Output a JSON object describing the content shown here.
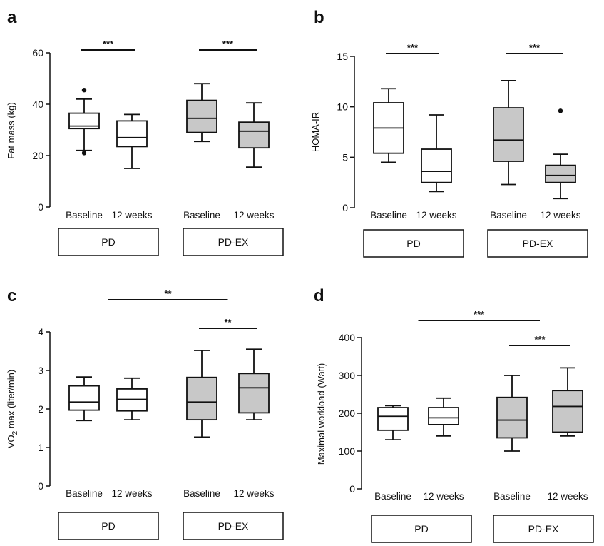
{
  "chart_data": [
    {
      "type": "boxplot",
      "panel_letter": "a",
      "ylabel": "Fat mass (kg)",
      "ylim": [
        0,
        60
      ],
      "yticks": [
        "0",
        "20",
        "40",
        "60"
      ],
      "categories": [
        "Baseline",
        "12 weeks",
        "Baseline",
        "12 weeks"
      ],
      "groups": [
        {
          "label": "PD",
          "fill": "#ffffff"
        },
        {
          "label": "PD-EX",
          "fill": "#c8c8c8"
        }
      ],
      "boxes": [
        {
          "min": 22,
          "q1": 30.5,
          "median": 31.5,
          "q3": 36.5,
          "max": 42,
          "outliers": [
            21,
            45.5
          ]
        },
        {
          "min": 15,
          "q1": 23.5,
          "median": 27,
          "q3": 33.5,
          "max": 36,
          "outliers": []
        },
        {
          "min": 25.5,
          "q1": 29,
          "median": 34.5,
          "q3": 41.5,
          "max": 48,
          "outliers": []
        },
        {
          "min": 15.5,
          "q1": 23,
          "median": 29.5,
          "q3": 33,
          "max": 40.5,
          "outliers": []
        }
      ],
      "significance": [
        {
          "from": 0,
          "to": 1,
          "label": "***"
        },
        {
          "from": 2,
          "to": 3,
          "label": "***"
        }
      ]
    },
    {
      "type": "boxplot",
      "panel_letter": "b",
      "ylabel": "HOMA-IR",
      "ylim": [
        0,
        15
      ],
      "yticks": [
        "0",
        "5",
        "10",
        "15"
      ],
      "categories": [
        "Baseline",
        "12 weeks",
        "Baseline",
        "12 weeks"
      ],
      "groups": [
        {
          "label": "PD",
          "fill": "#ffffff"
        },
        {
          "label": "PD-EX",
          "fill": "#c8c8c8"
        }
      ],
      "boxes": [
        {
          "min": 4.5,
          "q1": 5.4,
          "median": 7.9,
          "q3": 10.4,
          "max": 11.8,
          "outliers": []
        },
        {
          "min": 1.6,
          "q1": 2.5,
          "median": 3.6,
          "q3": 5.8,
          "max": 9.2,
          "outliers": []
        },
        {
          "min": 2.3,
          "q1": 4.6,
          "median": 6.7,
          "q3": 9.9,
          "max": 12.6,
          "outliers": []
        },
        {
          "min": 0.9,
          "q1": 2.5,
          "median": 3.2,
          "q3": 4.2,
          "max": 5.3,
          "outliers": [
            9.6
          ]
        }
      ],
      "significance": [
        {
          "from": 0,
          "to": 1,
          "label": "***"
        },
        {
          "from": 2,
          "to": 3,
          "label": "***"
        }
      ]
    },
    {
      "type": "boxplot",
      "panel_letter": "c",
      "ylabel": "VO2 max (liter/min)",
      "ylabel_main": "VO",
      "ylabel_sub": "2",
      "ylabel_rest": " max (liter/min)",
      "ylim": [
        0,
        4
      ],
      "yticks": [
        "0",
        "1",
        "2",
        "3",
        "4"
      ],
      "categories": [
        "Baseline",
        "12 weeks",
        "Baseline",
        "12 weeks"
      ],
      "groups": [
        {
          "label": "PD",
          "fill": "#ffffff"
        },
        {
          "label": "PD-EX",
          "fill": "#c8c8c8"
        }
      ],
      "boxes": [
        {
          "min": 1.7,
          "q1": 1.97,
          "median": 2.18,
          "q3": 2.6,
          "max": 2.83,
          "outliers": []
        },
        {
          "min": 1.72,
          "q1": 1.95,
          "median": 2.25,
          "q3": 2.52,
          "max": 2.8,
          "outliers": []
        },
        {
          "min": 1.27,
          "q1": 1.72,
          "median": 2.18,
          "q3": 2.82,
          "max": 3.52,
          "outliers": []
        },
        {
          "min": 1.72,
          "q1": 1.9,
          "median": 2.55,
          "q3": 2.92,
          "max": 3.55,
          "outliers": []
        }
      ],
      "significance": [
        {
          "from": 0.5,
          "to": 2.5,
          "label": "**"
        },
        {
          "from": 2,
          "to": 3,
          "label": "**"
        }
      ]
    },
    {
      "type": "boxplot",
      "panel_letter": "d",
      "ylabel": "Maximal workload (Watt)",
      "ylim": [
        0,
        400
      ],
      "yticks": [
        "0",
        "100",
        "200",
        "300",
        "400"
      ],
      "categories": [
        "Baseline",
        "12 weeks",
        "Baseline",
        "12 weeks"
      ],
      "groups": [
        {
          "label": "PD",
          "fill": "#ffffff"
        },
        {
          "label": "PD-EX",
          "fill": "#c8c8c8"
        }
      ],
      "boxes": [
        {
          "min": 130,
          "q1": 155,
          "median": 192,
          "q3": 215,
          "max": 220,
          "outliers": []
        },
        {
          "min": 140,
          "q1": 170,
          "median": 188,
          "q3": 215,
          "max": 240,
          "outliers": []
        },
        {
          "min": 100,
          "q1": 135,
          "median": 182,
          "q3": 242,
          "max": 300,
          "outliers": []
        },
        {
          "min": 140,
          "q1": 150,
          "median": 218,
          "q3": 260,
          "max": 320,
          "outliers": []
        }
      ],
      "significance": [
        {
          "from": 0.5,
          "to": 2.5,
          "label": "***"
        },
        {
          "from": 2,
          "to": 3,
          "label": "***"
        }
      ]
    }
  ]
}
